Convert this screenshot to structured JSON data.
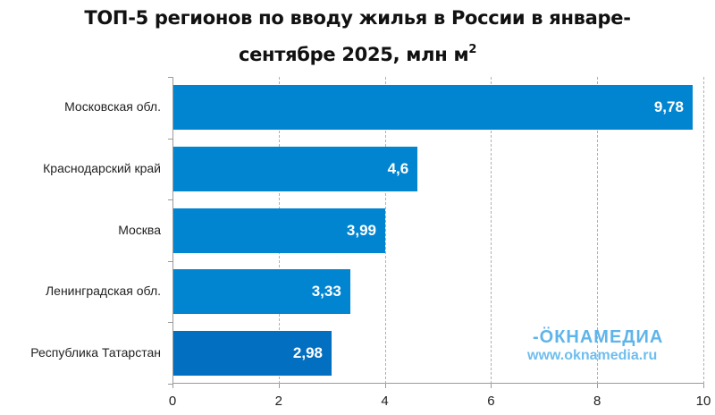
{
  "title_line1": "ТОП-5 регионов по вводу жилья в России в январе-",
  "title_line2": "сентябре 2025, млн м",
  "title_sup": "2",
  "watermark": {
    "logo": "-ÖКНАМЕДИА",
    "url": "www.oknamedia.ru"
  },
  "chart_data": {
    "type": "bar",
    "orientation": "horizontal",
    "title": "ТОП-5 регионов по вводу жилья в России в январе-сентябре 2025, млн м²",
    "categories": [
      "Московская обл.",
      "Краснодарский край",
      "Москва",
      "Ленинградская обл.",
      "Республика Татарстан"
    ],
    "values": [
      9.78,
      4.6,
      3.99,
      3.33,
      2.98
    ],
    "labels": [
      "9,78",
      "4,6",
      "3,99",
      "3,33",
      "2,98"
    ],
    "colors": [
      "#0285d0",
      "#0285d0",
      "#0285d0",
      "#0285d0",
      "#036fc0"
    ],
    "xlim": [
      0,
      10
    ],
    "xticks": [
      "0",
      "2",
      "4",
      "6",
      "8",
      "10"
    ],
    "xlabel": "",
    "ylabel": "",
    "grid": "vertical dashed",
    "legend": "none"
  }
}
